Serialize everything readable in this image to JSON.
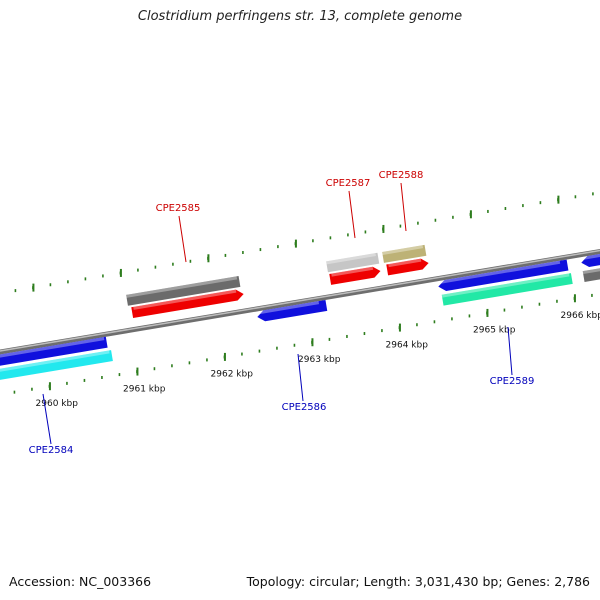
{
  "title": "Clostridium perfringens str. 13, complete genome",
  "accession": "Accession: NC_003366",
  "summary": "Topology: circular; Length: 3,031,430 bp; Genes: 2,786",
  "colors": {
    "backbone": "#8a8a8a",
    "tick": "#2e7d1e",
    "top_label": "#cc0000",
    "bottom_label": "#0000bb"
  },
  "ticks": [
    {
      "label": "2960 kbp",
      "side": "bottom"
    },
    {
      "label": "2961 kbp",
      "side": "bottom"
    },
    {
      "label": "2962 kbp",
      "side": "bottom"
    },
    {
      "label": "2963 kbp",
      "side": "bottom"
    },
    {
      "label": "2964 kbp",
      "side": "bottom"
    },
    {
      "label": "2965 kbp",
      "side": "bottom"
    },
    {
      "label": "2966 kbp",
      "side": "bottom"
    }
  ],
  "features": [
    {
      "id": "f-gray-1",
      "color": "#6b6b6b",
      "lane": "top-outer",
      "arrow": "none"
    },
    {
      "id": "f-red-1",
      "color": "#ee0000",
      "lane": "top-inner",
      "arrow": "right"
    },
    {
      "id": "f-silver",
      "color": "#c6c6c6",
      "lane": "top-outer",
      "arrow": "none"
    },
    {
      "id": "f-khaki",
      "color": "#bdb276",
      "lane": "top-outer",
      "arrow": "none"
    },
    {
      "id": "f-red-2",
      "color": "#ee0000",
      "lane": "top-inner",
      "arrow": "right"
    },
    {
      "id": "f-red-3",
      "color": "#ee0000",
      "lane": "top-inner",
      "arrow": "right"
    },
    {
      "id": "f-blue-1",
      "color": "#1010dd",
      "lane": "bottom-inner",
      "arrow": "none"
    },
    {
      "id": "f-cyan",
      "color": "#22e8ee",
      "lane": "bottom-outer",
      "arrow": "none"
    },
    {
      "id": "f-blue-2",
      "color": "#1010dd",
      "lane": "bottom-inner",
      "arrow": "left"
    },
    {
      "id": "f-blue-3",
      "color": "#1010dd",
      "lane": "bottom-inner",
      "arrow": "left"
    },
    {
      "id": "f-green",
      "color": "#22e8a6",
      "lane": "bottom-outer",
      "arrow": "none"
    },
    {
      "id": "f-blue-4",
      "color": "#1010dd",
      "lane": "bottom-inner",
      "arrow": "left"
    },
    {
      "id": "f-gray-2",
      "color": "#6b6b6b",
      "lane": "bottom-outer",
      "arrow": "none"
    }
  ],
  "labels": [
    {
      "text": "CPE2585",
      "side": "top"
    },
    {
      "text": "CPE2587",
      "side": "top"
    },
    {
      "text": "CPE2588",
      "side": "top"
    },
    {
      "text": "CPE2584",
      "side": "bottom"
    },
    {
      "text": "CPE2586",
      "side": "bottom"
    },
    {
      "text": "CPE2589",
      "side": "bottom"
    }
  ]
}
